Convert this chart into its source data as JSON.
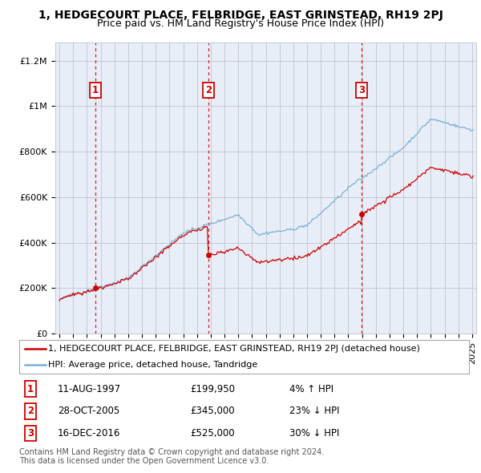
{
  "title": "1, HEDGECOURT PLACE, FELBRIDGE, EAST GRINSTEAD, RH19 2PJ",
  "subtitle": "Price paid vs. HM Land Registry's House Price Index (HPI)",
  "ylabel_ticks": [
    "£0",
    "£200K",
    "£400K",
    "£600K",
    "£800K",
    "£1M",
    "£1.2M"
  ],
  "ylim": [
    0,
    1280000
  ],
  "yticks": [
    0,
    200000,
    400000,
    600000,
    800000,
    1000000,
    1200000
  ],
  "xlim_start": 1994.7,
  "xlim_end": 2025.3,
  "sale_dates": [
    1997.61,
    2005.83,
    2016.96
  ],
  "sale_prices": [
    199950,
    345000,
    525000
  ],
  "sale_labels": [
    "1",
    "2",
    "3"
  ],
  "sale_info": [
    {
      "date": "11-AUG-1997",
      "price": "£199,950",
      "hpi": "4% ↑ HPI"
    },
    {
      "date": "28-OCT-2005",
      "price": "£345,000",
      "hpi": "23% ↓ HPI"
    },
    {
      "date": "16-DEC-2016",
      "price": "£525,000",
      "hpi": "30% ↓ HPI"
    }
  ],
  "legend_red": "1, HEDGECOURT PLACE, FELBRIDGE, EAST GRINSTEAD, RH19 2PJ (detached house)",
  "legend_blue": "HPI: Average price, detached house, Tandridge",
  "footer": "Contains HM Land Registry data © Crown copyright and database right 2024.\nThis data is licensed under the Open Government Licence v3.0.",
  "red_color": "#cc0000",
  "blue_color": "#7ab0d4",
  "bg_color": "#e8eef8",
  "grid_color": "#c8c8d0",
  "title_fontsize": 10,
  "subtitle_fontsize": 9,
  "axis_fontsize": 8,
  "legend_fontsize": 8,
  "footer_fontsize": 7
}
